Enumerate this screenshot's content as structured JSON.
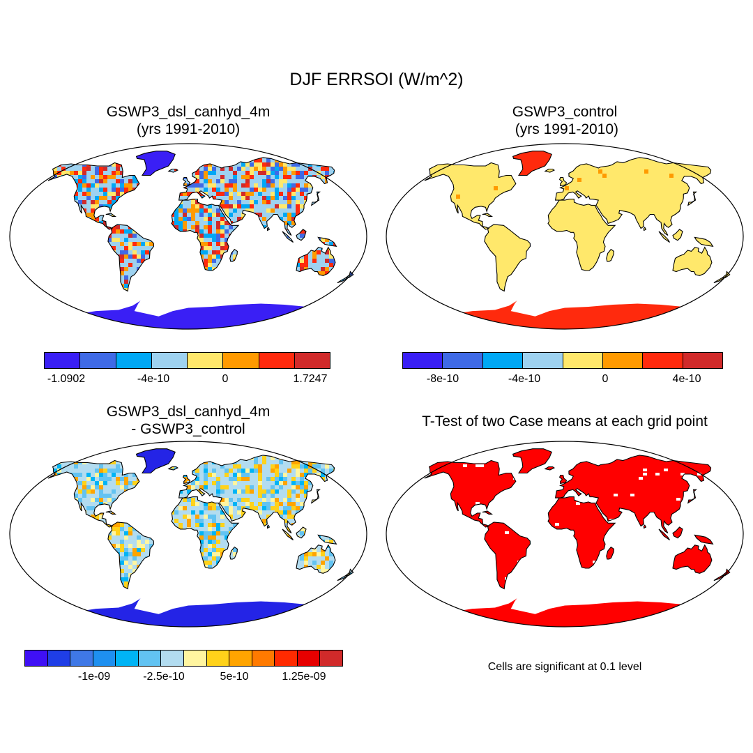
{
  "title": "DJF ERRSOI (W/m^2)",
  "panels": [
    {
      "id": "p1",
      "title_line1": "GSWP3_dsl_canhyd_4m",
      "title_line2": "(yrs 1991-2010)",
      "land_pattern": "noisy-diverging",
      "antarctica": "#3a1ff5",
      "greenland": "#3a1ff5"
    },
    {
      "id": "p2",
      "title_line1": "GSWP3_control",
      "title_line2": " (yrs 1991-2010)",
      "land_pattern": "uniform",
      "land_color": "#ffe86b",
      "antarctica": "#ff2a0d",
      "greenland": "#ff2a0d"
    },
    {
      "id": "p3",
      "title_line1": "GSWP3_dsl_canhyd_4m",
      "title_line2": "- GSWP3_control",
      "land_pattern": "noisy-light",
      "antarctica": "#2424e6",
      "greenland": "#2424e6"
    },
    {
      "id": "p4",
      "title_line1": "T-Test of two Case means at each grid point",
      "title_line2": "",
      "land_pattern": "significance",
      "land_color": "#ff0000",
      "antarctica": "#ff0000",
      "greenland": "#ff0000"
    }
  ],
  "colorbars": [
    {
      "colors": [
        "#3a1ff5",
        "#3f6ae6",
        "#00a8f5",
        "#9ed2f0",
        "#ffe86b",
        "#ff9a00",
        "#ff2a0d",
        "#d12a2a"
      ],
      "labels": [
        "-1.0902",
        "-4e-10",
        "0",
        "1.7247"
      ]
    },
    {
      "colors": [
        "#3a1ff5",
        "#3f6ae6",
        "#00a8f5",
        "#9ed2f0",
        "#ffe86b",
        "#ff9a00",
        "#ff2a0d",
        "#d12a2a"
      ],
      "labels": [
        "-8e-10",
        "-4e-10",
        "0",
        "4e-10"
      ]
    },
    {
      "colors": [
        "#3f10f5",
        "#1f3ee6",
        "#3f78e6",
        "#1e90f0",
        "#00b4f5",
        "#62c3f2",
        "#b2dcf0",
        "#fff5a0",
        "#ffd21a",
        "#ffa400",
        "#ff7a00",
        "#ff2a00",
        "#e60000",
        "#d12a2a"
      ],
      "labels": [
        "-1e-09",
        "-2.5e-10",
        "5e-10",
        "1.25e-09"
      ]
    }
  ],
  "significance_note": "Cells are significant at 0.1 level"
}
